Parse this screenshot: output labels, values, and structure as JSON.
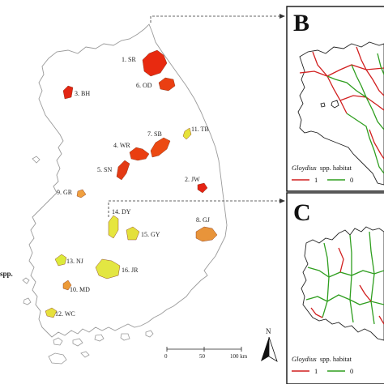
{
  "colors": {
    "coastline": "#9a9a9a",
    "red_route": "#d11f1f",
    "green_route": "#2f9e1f",
    "panel_border": "#111111",
    "dash": "#333333"
  },
  "sites": [
    {
      "id": "1. SR",
      "fill": "#e82a10"
    },
    {
      "id": "3. BH",
      "fill": "#e32614"
    },
    {
      "id": "6. OD",
      "fill": "#ea3f12"
    },
    {
      "id": "7. SB",
      "fill": "#ec4a12"
    },
    {
      "id": "4. WR",
      "fill": "#ea3e10"
    },
    {
      "id": "5. SN",
      "fill": "#e33a14"
    },
    {
      "id": "11. TB",
      "fill": "#e6e23a"
    },
    {
      "id": "2. JW",
      "fill": "#e52414"
    },
    {
      "id": "9. GR",
      "fill": "#f0a040"
    },
    {
      "id": "14. DY",
      "fill": "#e6e63e"
    },
    {
      "id": "15. GY",
      "fill": "#e4e03a"
    },
    {
      "id": "8. GJ",
      "fill": "#e8943a"
    },
    {
      "id": "13. NJ",
      "fill": "#dcea3a"
    },
    {
      "id": "16. JR",
      "fill": "#e3e642"
    },
    {
      "id": "10. MD",
      "fill": "#ec9a38"
    },
    {
      "id": "12. WC",
      "fill": "#e6e03c"
    }
  ],
  "left_cut_text": "spp.",
  "panel_b": {
    "letter": "B",
    "legend_species": "Gloydius",
    "legend_rest": "spp. habitat",
    "legend_items": [
      {
        "value": "1",
        "color": "#d11f1f"
      },
      {
        "value": "0",
        "color": "#2f9e1f"
      }
    ]
  },
  "panel_c": {
    "letter": "C",
    "legend_species": "Gloydius",
    "legend_rest": "spp. habitat",
    "legend_items": [
      {
        "value": "1",
        "color": "#d11f1f"
      },
      {
        "value": "0",
        "color": "#2f9e1f"
      }
    ]
  },
  "scale_bar": {
    "ticks": [
      "0",
      "50",
      "100 km"
    ]
  },
  "north_arrow": {
    "label": "N"
  }
}
